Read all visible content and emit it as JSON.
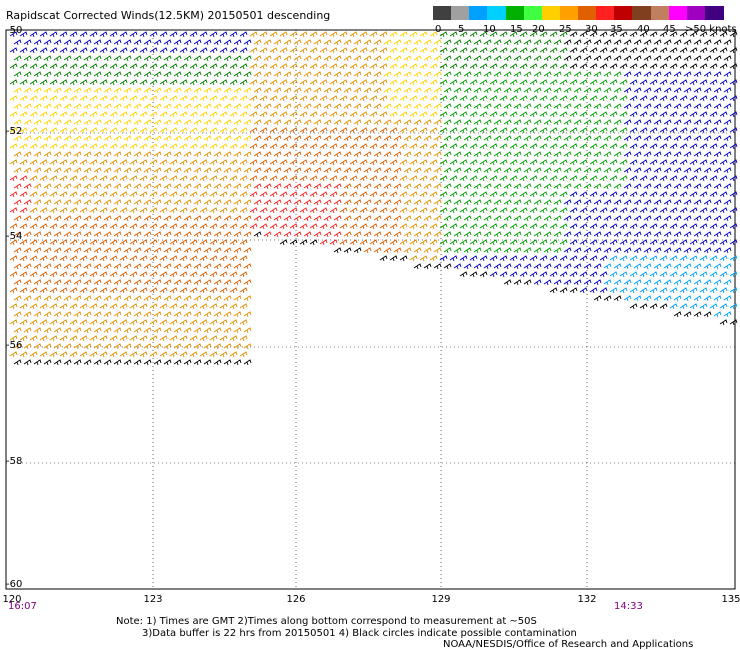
{
  "title": "Rapidscat Corrected Winds(12.5KM) 20150501 descending",
  "legend": {
    "colors": [
      "#404040",
      "#a0a0a0",
      "#00a0ff",
      "#00d0ff",
      "#00b000",
      "#40ff40",
      "#ffd000",
      "#ffa000",
      "#e06000",
      "#ff2020",
      "#c00000",
      "#804020",
      "#c08060",
      "#ff00ff",
      "#a000c0",
      "#400080"
    ],
    "labels": [
      "0",
      "5",
      "10",
      "15",
      "20",
      "25",
      "30",
      "35",
      "40",
      "45",
      ">50 knots"
    ]
  },
  "axes": {
    "lat_labels": [
      "-50",
      "-52",
      "-54",
      "-56",
      "-58",
      "-60"
    ],
    "lon_labels": [
      "120",
      "123",
      "126",
      "129",
      "132",
      "135"
    ]
  },
  "times": {
    "start": "16:07",
    "end": "14:33"
  },
  "notes": [
    "Note: 1) Times are GMT 2)Times along bottom correspond to measurement at ~50S",
    "3)Data buffer is 22 hrs from 20150501 4) Black circles indicate possible contamination",
    "NOAA/NESDIS/Office of Research and Applications"
  ]
}
